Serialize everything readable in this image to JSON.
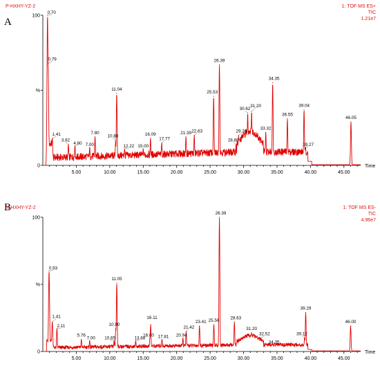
{
  "chart_data": [
    {
      "type": "line",
      "panel_label": "A",
      "sample": "P-HXHY-YZ-2",
      "mode_line1": "1: TOF MS ES+",
      "mode_line2": "TIC",
      "mode_line3": "1.21e7",
      "xlabel": "Time",
      "ylabel": "%",
      "xlim": [
        0,
        47.5
      ],
      "ylim": [
        0,
        100
      ],
      "y_ticks": [
        {
          "v": 0,
          "label": "0"
        },
        {
          "v": 50,
          "label": "%"
        },
        {
          "v": 100,
          "label": "100"
        }
      ],
      "x_ticks": [
        5,
        10,
        15,
        20,
        25,
        30,
        35,
        40,
        45
      ],
      "x_tick_labels": [
        "5.00",
        "10.00",
        "15.00",
        "20.00",
        "25.00",
        "30.00",
        "35.00",
        "40.00",
        "45.00"
      ],
      "baseline": 9,
      "peaks": [
        {
          "label": "0.70",
          "x": 0.7,
          "y": 100
        },
        {
          "label": "0.79",
          "x": 0.79,
          "y": 68
        },
        {
          "label": "1.41",
          "x": 1.41,
          "y": 18
        },
        {
          "label": "3.82",
          "x": 3.82,
          "y": 14
        },
        {
          "label": "4.80",
          "x": 4.8,
          "y": 13
        },
        {
          "label": "7.00",
          "x": 7.0,
          "y": 12
        },
        {
          "label": "7.80",
          "x": 7.8,
          "y": 19
        },
        {
          "label": "10.88",
          "x": 10.88,
          "y": 16
        },
        {
          "label": "11.04",
          "x": 11.04,
          "y": 48
        },
        {
          "label": "12.22",
          "x": 12.22,
          "y": 11
        },
        {
          "label": "15.00",
          "x": 15.0,
          "y": 11
        },
        {
          "label": "16.09",
          "x": 16.09,
          "y": 18
        },
        {
          "label": "17.77",
          "x": 17.77,
          "y": 15
        },
        {
          "label": "21.39",
          "x": 21.39,
          "y": 19
        },
        {
          "label": "22.63",
          "x": 22.63,
          "y": 20
        },
        {
          "label": "25.53",
          "x": 25.53,
          "y": 46
        },
        {
          "label": "26.39",
          "x": 26.39,
          "y": 67
        },
        {
          "label": "28.88",
          "x": 28.88,
          "y": 14
        },
        {
          "label": "29.26",
          "x": 29.26,
          "y": 20
        },
        {
          "label": "30.62",
          "x": 30.62,
          "y": 35
        },
        {
          "label": "31.20",
          "x": 31.2,
          "y": 36
        },
        {
          "label": "33.32",
          "x": 33.32,
          "y": 22
        },
        {
          "label": "34.35",
          "x": 34.35,
          "y": 55
        },
        {
          "label": "36.55",
          "x": 36.55,
          "y": 31
        },
        {
          "label": "39.04",
          "x": 39.04,
          "y": 37
        },
        {
          "label": "39.27",
          "x": 39.27,
          "y": 12
        },
        {
          "label": "46.05",
          "x": 46.05,
          "y": 29
        }
      ]
    },
    {
      "type": "line",
      "panel_label": "B",
      "sample": "N-HXHY-YZ-2",
      "mode_line1": "1: TOF MS ES-",
      "mode_line2": "TIC",
      "mode_line3": "4.96e7",
      "xlabel": "Time",
      "ylabel": "%",
      "xlim": [
        0,
        47.5
      ],
      "ylim": [
        0,
        100
      ],
      "y_ticks": [
        {
          "v": 0,
          "label": "0"
        },
        {
          "v": 50,
          "label": "%"
        },
        {
          "v": 100,
          "label": "100"
        }
      ],
      "x_ticks": [
        5,
        10,
        15,
        20,
        25,
        30,
        35,
        40,
        45
      ],
      "x_tick_labels": [
        "5.00",
        "10.00",
        "15.00",
        "20.00",
        "25.00",
        "30.00",
        "35.00",
        "40.00",
        "45.00"
      ],
      "baseline": 5,
      "peaks": [
        {
          "label": "0.93",
          "x": 0.93,
          "y": 60
        },
        {
          "label": "1.41",
          "x": 1.41,
          "y": 22
        },
        {
          "label": "2.11",
          "x": 2.11,
          "y": 17
        },
        {
          "label": "5.76",
          "x": 5.76,
          "y": 9
        },
        {
          "label": "7.00",
          "x": 7.0,
          "y": 8
        },
        {
          "label": "10.65",
          "x": 10.65,
          "y": 8
        },
        {
          "label": "10.90",
          "x": 10.9,
          "y": 17
        },
        {
          "label": "11.05",
          "x": 11.05,
          "y": 51
        },
        {
          "label": "13.88",
          "x": 13.88,
          "y": 8
        },
        {
          "label": "16.00",
          "x": 16.0,
          "y": 10
        },
        {
          "label": "16.11",
          "x": 16.11,
          "y": 20
        },
        {
          "label": "17.81",
          "x": 17.81,
          "y": 9
        },
        {
          "label": "20.94",
          "x": 20.94,
          "y": 10
        },
        {
          "label": "21.42",
          "x": 21.42,
          "y": 15
        },
        {
          "label": "23.41",
          "x": 23.41,
          "y": 19
        },
        {
          "label": "25.56",
          "x": 25.56,
          "y": 20
        },
        {
          "label": "26.39",
          "x": 26.39,
          "y": 100
        },
        {
          "label": "28.63",
          "x": 28.63,
          "y": 22
        },
        {
          "label": "31.20",
          "x": 31.2,
          "y": 14
        },
        {
          "label": "32.52",
          "x": 32.52,
          "y": 10
        },
        {
          "label": "34.35",
          "x": 34.35,
          "y": 5
        },
        {
          "label": "39.12",
          "x": 39.12,
          "y": 10
        },
        {
          "label": "39.29",
          "x": 39.29,
          "y": 29
        },
        {
          "label": "46.00",
          "x": 46.0,
          "y": 19
        }
      ]
    }
  ]
}
